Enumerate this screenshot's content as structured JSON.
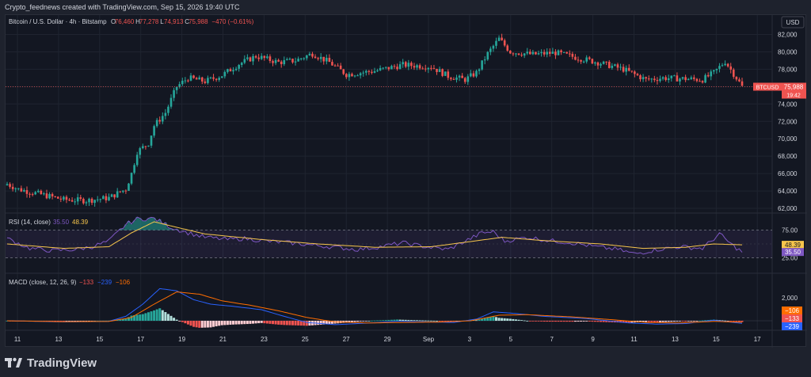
{
  "header": {
    "attribution": "Crypto_feednews created with TradingView.com, Sep 15, 2026 19:40 UTC",
    "title": "Bitcoin / U.S. Dollar · 4h · Bitstamp",
    "ohlc": {
      "o_label": "O",
      "o": "76,460",
      "h_label": "H",
      "h": "77,278",
      "l_label": "L",
      "l": "74,913",
      "c_label": "C",
      "c": "75,988",
      "chg": "−470 (−0.61%)"
    },
    "currency": "USD"
  },
  "price_axis": {
    "ticks": [
      "82,000",
      "80,000",
      "78,000",
      "76,000",
      "74,000",
      "72,000",
      "70,000",
      "68,000",
      "66,000",
      "64,000",
      "62,000"
    ],
    "values": [
      82000,
      80000,
      78000,
      76000,
      74000,
      72000,
      70000,
      68000,
      66000,
      64000,
      62000
    ]
  },
  "badge": {
    "symbol": "BTCUSD",
    "price": "75,988",
    "countdown": "19:42"
  },
  "rsi": {
    "label": "RSI (14, close)",
    "v1": "35.50",
    "v2": "48.39",
    "ticks": [
      "75.00",
      "25.00"
    ],
    "levels": [
      75,
      25
    ]
  },
  "macd": {
    "label": "MACD (close, 12, 26, 9)",
    "v1": "−133",
    "v2": "−239",
    "v3": "−106",
    "tick": "2,000",
    "badges": [
      "−106",
      "−133",
      "−239"
    ]
  },
  "time_axis": {
    "labels": [
      "11",
      "13",
      "15",
      "17",
      "19",
      "21",
      "23",
      "25",
      "27",
      "29",
      "Sep",
      "3",
      "5",
      "7",
      "9",
      "11",
      "13",
      "15",
      "17"
    ]
  },
  "footer": {
    "brand": "TradingView"
  },
  "colors": {
    "up": "#26a69a",
    "down": "#ef5350",
    "rsi": "#7e57c2",
    "rsi_ma": "#f7c64c",
    "macd": "#2962ff",
    "signal": "#ff6d00",
    "bg": "#131722"
  },
  "chart_data": [
    {
      "type": "candlestick",
      "title": "Bitcoin / U.S. Dollar · 4h · Bitstamp",
      "ylim": [
        61000,
        83000
      ],
      "x_start": "Aug 10",
      "close_anchors": [
        [
          0,
          64800
        ],
        [
          4,
          64200
        ],
        [
          12,
          63600
        ],
        [
          20,
          63000
        ],
        [
          28,
          62900
        ],
        [
          36,
          63200
        ],
        [
          40,
          63900
        ],
        [
          42,
          64200
        ],
        [
          44,
          66000
        ],
        [
          46,
          68500
        ],
        [
          50,
          69500
        ],
        [
          52,
          71500
        ],
        [
          56,
          73000
        ],
        [
          60,
          76000
        ],
        [
          64,
          77000
        ],
        [
          70,
          76600
        ],
        [
          76,
          77300
        ],
        [
          82,
          78600
        ],
        [
          88,
          79500
        ],
        [
          96,
          78800
        ],
        [
          102,
          79000
        ],
        [
          108,
          79800
        ],
        [
          114,
          78800
        ],
        [
          120,
          77400
        ],
        [
          130,
          77800
        ],
        [
          140,
          78500
        ],
        [
          150,
          78300
        ],
        [
          156,
          77200
        ],
        [
          162,
          76800
        ],
        [
          166,
          77600
        ],
        [
          170,
          79800
        ],
        [
          174,
          81500
        ],
        [
          178,
          80000
        ],
        [
          186,
          79700
        ],
        [
          194,
          79900
        ],
        [
          202,
          79300
        ],
        [
          210,
          78700
        ],
        [
          218,
          78000
        ],
        [
          226,
          76800
        ],
        [
          232,
          77000
        ],
        [
          240,
          76900
        ],
        [
          246,
          76800
        ],
        [
          250,
          77600
        ],
        [
          254,
          78900
        ],
        [
          258,
          77000
        ],
        [
          260,
          75988
        ]
      ]
    },
    {
      "type": "line",
      "title": "RSI (14, close)",
      "ylim": [
        0,
        100
      ],
      "levels": [
        75,
        25
      ],
      "series": [
        {
          "name": "RSI",
          "points": [
            [
              0,
              60
            ],
            [
              8,
              42
            ],
            [
              16,
              38
            ],
            [
              24,
              40
            ],
            [
              30,
              45
            ],
            [
              36,
              55
            ],
            [
              42,
              85
            ],
            [
              46,
              95
            ],
            [
              52,
              96
            ],
            [
              58,
              80
            ],
            [
              64,
              70
            ],
            [
              70,
              62
            ],
            [
              78,
              58
            ],
            [
              84,
              60
            ],
            [
              92,
              55
            ],
            [
              100,
              52
            ],
            [
              108,
              48
            ],
            [
              116,
              44
            ],
            [
              124,
              40
            ],
            [
              132,
              45
            ],
            [
              140,
              52
            ],
            [
              148,
              45
            ],
            [
              156,
              40
            ],
            [
              162,
              55
            ],
            [
              168,
              70
            ],
            [
              172,
              72
            ],
            [
              176,
              55
            ],
            [
              184,
              62
            ],
            [
              192,
              56
            ],
            [
              200,
              52
            ],
            [
              208,
              45
            ],
            [
              216,
              40
            ],
            [
              222,
              32
            ],
            [
              230,
              40
            ],
            [
              238,
              45
            ],
            [
              246,
              42
            ],
            [
              252,
              68
            ],
            [
              256,
              50
            ],
            [
              260,
              35.5
            ]
          ]
        },
        {
          "name": "RSI MA",
          "points": [
            [
              0,
              50
            ],
            [
              20,
              42
            ],
            [
              36,
              45
            ],
            [
              44,
              70
            ],
            [
              52,
              90
            ],
            [
              60,
              80
            ],
            [
              70,
              68
            ],
            [
              90,
              58
            ],
            [
              110,
              50
            ],
            [
              130,
              44
            ],
            [
              150,
              45
            ],
            [
              165,
              55
            ],
            [
              175,
              62
            ],
            [
              190,
              56
            ],
            [
              210,
              50
            ],
            [
              225,
              42
            ],
            [
              240,
              44
            ],
            [
              250,
              50
            ],
            [
              260,
              48.39
            ]
          ]
        }
      ]
    },
    {
      "type": "line",
      "title": "MACD (close, 12, 26, 9)",
      "ylim": [
        -600,
        3200
      ],
      "series": [
        {
          "name": "MACD",
          "points": [
            [
              0,
              0
            ],
            [
              20,
              -100
            ],
            [
              36,
              -50
            ],
            [
              42,
              400
            ],
            [
              48,
              1500
            ],
            [
              54,
              2900
            ],
            [
              60,
              2700
            ],
            [
              66,
              1900
            ],
            [
              72,
              1500
            ],
            [
              80,
              1300
            ],
            [
              90,
              1000
            ],
            [
              98,
              400
            ],
            [
              106,
              -150
            ],
            [
              116,
              -350
            ],
            [
              128,
              -200
            ],
            [
              138,
              -50
            ],
            [
              148,
              -100
            ],
            [
              158,
              -150
            ],
            [
              166,
              150
            ],
            [
              172,
              800
            ],
            [
              178,
              700
            ],
            [
              190,
              400
            ],
            [
              205,
              200
            ],
            [
              220,
              -200
            ],
            [
              230,
              -300
            ],
            [
              240,
              -250
            ],
            [
              250,
              50
            ],
            [
              260,
              -239
            ]
          ]
        },
        {
          "name": "Signal",
          "points": [
            [
              0,
              0
            ],
            [
              20,
              -80
            ],
            [
              36,
              -60
            ],
            [
              44,
              300
            ],
            [
              52,
              1500
            ],
            [
              60,
              2600
            ],
            [
              68,
              2400
            ],
            [
              76,
              1800
            ],
            [
              86,
              1400
            ],
            [
              96,
              900
            ],
            [
              106,
              300
            ],
            [
              116,
              -100
            ],
            [
              128,
              -200
            ],
            [
              140,
              -150
            ],
            [
              152,
              -120
            ],
            [
              164,
              0
            ],
            [
              174,
              500
            ],
            [
              184,
              550
            ],
            [
              200,
              350
            ],
            [
              214,
              100
            ],
            [
              226,
              -150
            ],
            [
              238,
              -200
            ],
            [
              250,
              -50
            ],
            [
              260,
              -133
            ]
          ]
        }
      ]
    }
  ]
}
